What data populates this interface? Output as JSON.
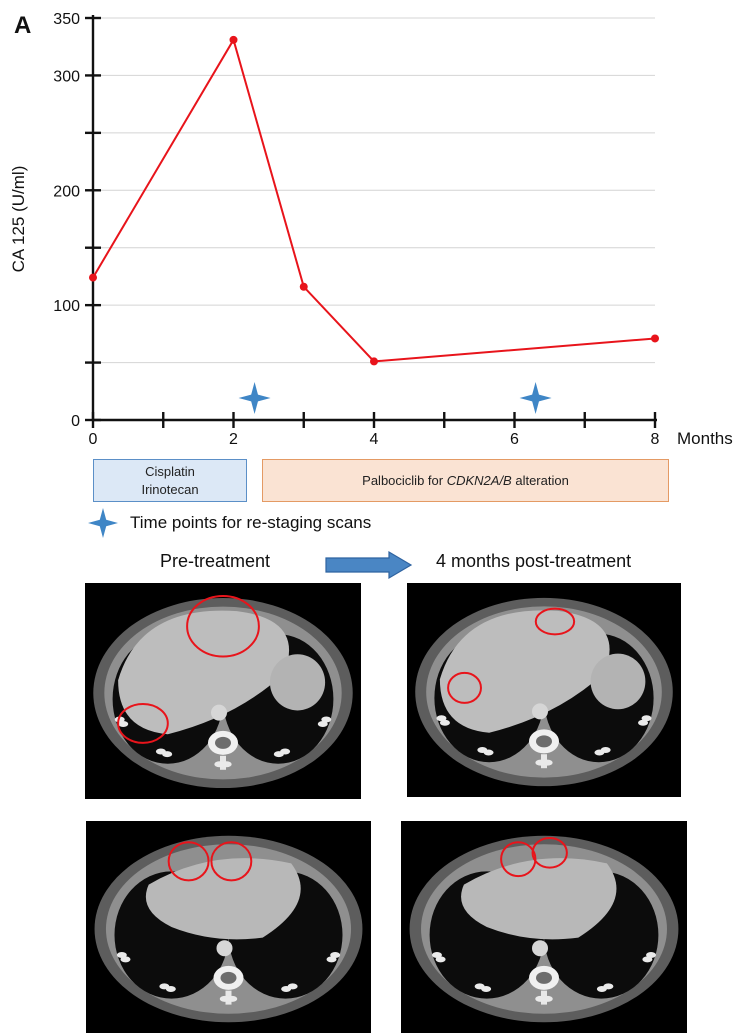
{
  "panel_label": "A",
  "chart_data": {
    "type": "line",
    "x": [
      0,
      2,
      3,
      4,
      8
    ],
    "y": [
      124,
      331,
      116,
      51,
      71
    ],
    "xlabel": "Months",
    "ylabel": "CA 125 (U/ml)",
    "xlim": [
      0,
      8
    ],
    "ylim": [
      0,
      350
    ],
    "x_ticks": [
      0,
      1,
      2,
      3,
      4,
      5,
      6,
      7,
      8
    ],
    "x_tick_labels": [
      "0",
      "",
      "2",
      "",
      "4",
      "",
      "6",
      "",
      "8"
    ],
    "y_ticks": [
      0,
      50,
      100,
      150,
      200,
      250,
      300,
      350
    ],
    "y_tick_labels": [
      "0",
      "",
      "100",
      "",
      "200",
      "",
      "300",
      "350"
    ],
    "grid": "horizontal",
    "line_color": "#e8141b",
    "restaging_scan_months": [
      2.3,
      6.3
    ],
    "marker_color": "#3f86c6"
  },
  "treatments": {
    "first": {
      "line1": "Cisplatin",
      "line2": "Irinotecan"
    },
    "second": {
      "prefix": "Palbociclib for ",
      "gene": "CDKN2A/B",
      "suffix": " alteration"
    }
  },
  "legend": {
    "label": "Time points for re-staging scans",
    "icon": "four-point-star-icon"
  },
  "scans": {
    "left_title": "Pre-treatment",
    "right_title": "4 months post-treatment",
    "arrow_icon": "right-arrow-icon",
    "highlight_color": "#e8141b"
  }
}
